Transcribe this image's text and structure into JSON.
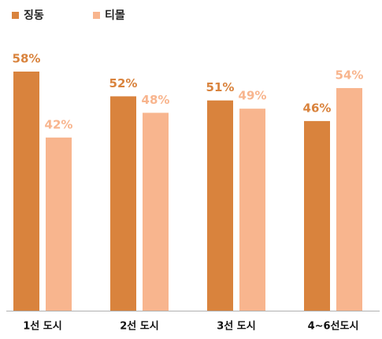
{
  "chart_data": {
    "type": "bar",
    "categories": [
      "1선 도시",
      "2선 도시",
      "3선 도시",
      "4~6선도시"
    ],
    "series": [
      {
        "name": "징동",
        "color": "#d9833d",
        "values": [
          58,
          52,
          51,
          46
        ],
        "value_labels": [
          "58%",
          "52%",
          "51%",
          "46%"
        ]
      },
      {
        "name": "티몰",
        "color": "#f8b58e",
        "values": [
          42,
          48,
          49,
          54
        ],
        "value_labels": [
          "42%",
          "48%",
          "49%",
          "54%"
        ]
      }
    ]
  }
}
